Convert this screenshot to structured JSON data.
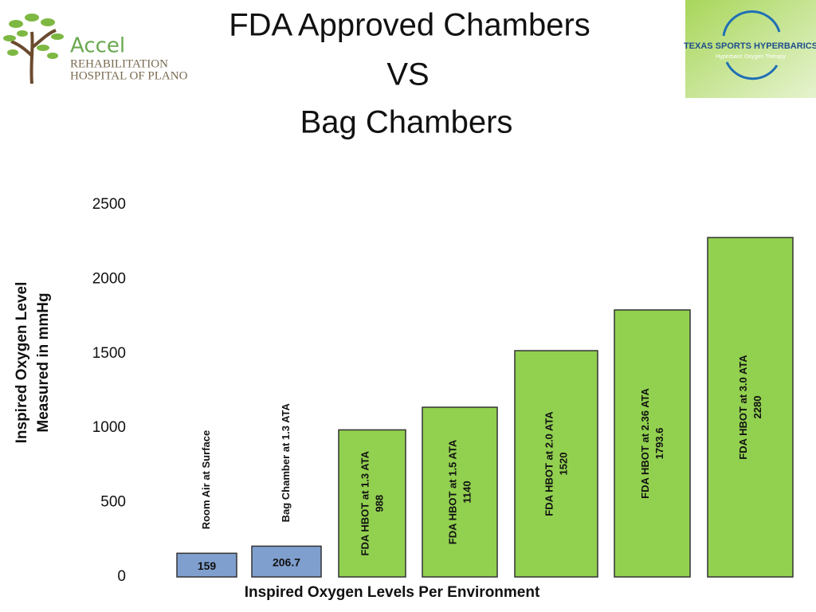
{
  "chart_data": {
    "type": "bar",
    "title": [
      "FDA Approved Chambers",
      "VS",
      "Bag Chambers"
    ],
    "y_label": [
      "Inspired Oxygen Level",
      "Measured in mmHg"
    ],
    "x_label": "Inspired Oxygen Levels Per Environment",
    "categories": [
      "Room Air at Surface",
      "Bag Chamber at 1.3 ATA",
      "FDA HBOT at 1.3 ATA",
      "FDA HBOT at 1.5 ATA",
      "FDA HBOT at 2.0 ATA",
      "FDA HBOT at 2.36 ATA",
      "FDA HBOT at 3.0 ATA"
    ],
    "values": [
      159,
      206.7,
      988,
      1140,
      1520,
      1793.6,
      2280
    ],
    "colors": [
      "#7f9fcf",
      "#7f9fcf",
      "#92d050",
      "#92d050",
      "#92d050",
      "#92d050",
      "#92d050"
    ],
    "ylim": [
      0,
      2500
    ],
    "yticks": [
      0,
      500,
      1000,
      1500,
      2000,
      2500
    ],
    "grid": false
  },
  "logos": {
    "left": [
      "Accel",
      "REHABILITATION",
      "HOSPITAL OF PLANO"
    ],
    "right": [
      "TEXAS SPORTS HYPERBARICS",
      "Hyperbaric Oxygen Therapy"
    ]
  }
}
